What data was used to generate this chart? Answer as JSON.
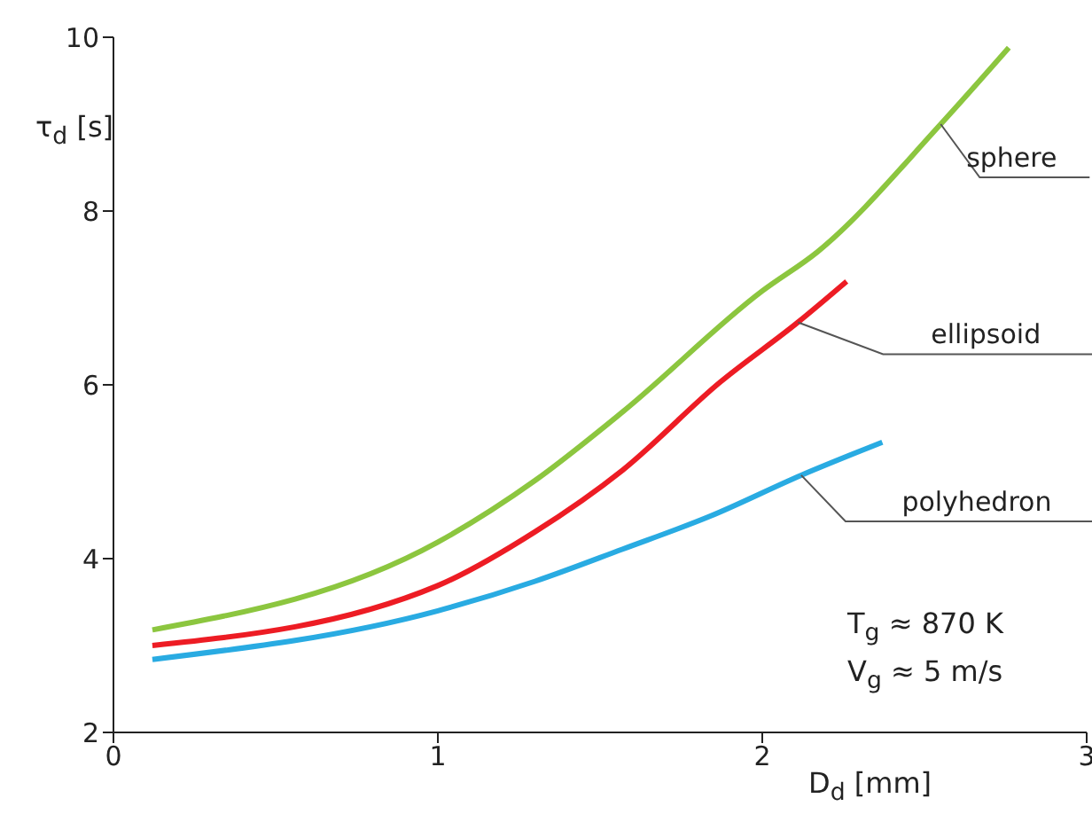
{
  "chart_data": {
    "type": "line",
    "xlabel": "D$_{d}$ [mm]",
    "ylabel": "τ$_{d}$ [s]",
    "xlim": [
      0,
      3
    ],
    "xticks": [
      0,
      1,
      2,
      3
    ],
    "ylim": [
      2,
      10
    ],
    "yticks": [
      2,
      4,
      6,
      8,
      10
    ],
    "grid": false,
    "legend": false,
    "marker": "none",
    "line_style": "solid",
    "annotations": [
      "T$_{g}$ ≈ 870 K",
      "V$_{g}$ ≈ 5 m/s"
    ],
    "series": [
      {
        "name": "sphere",
        "color": "#8cc63f",
        "x": [
          0.12,
          1.0,
          1.3,
          1.57,
          2.0,
          2.17,
          2.55,
          2.76
        ],
        "values": [
          3.18,
          4.19,
          4.9,
          5.69,
          7.08,
          7.53,
          9.0,
          9.88
        ]
      },
      {
        "name": "ellipsoid",
        "color": "#ed1c24",
        "x": [
          0.12,
          1.0,
          1.3,
          1.57,
          1.87,
          2.11,
          2.26
        ],
        "values": [
          3.0,
          3.69,
          4.31,
          5.02,
          6.03,
          6.72,
          7.19
        ]
      },
      {
        "name": "polyhedron",
        "color": "#29abe2",
        "x": [
          0.12,
          1.0,
          1.3,
          1.57,
          1.84,
          2.12,
          2.37
        ],
        "values": [
          2.84,
          3.4,
          3.74,
          4.11,
          4.49,
          4.96,
          5.34
        ]
      }
    ]
  }
}
